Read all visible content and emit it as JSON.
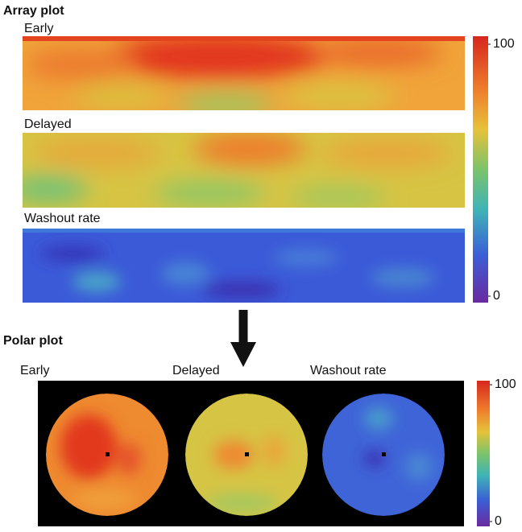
{
  "sections": [
    {
      "title": "Array plot",
      "panels": [
        "Early",
        "Delayed",
        "Washout rate"
      ],
      "colorbar": {
        "lim": [
          0,
          100
        ],
        "ticks": [
          0,
          100
        ]
      }
    },
    {
      "title": "Polar plot",
      "panels": [
        "Early",
        "Delayed",
        "Washout rate"
      ],
      "colorbar": {
        "lim": [
          0,
          100
        ],
        "ticks": [
          0,
          100
        ]
      }
    }
  ]
}
